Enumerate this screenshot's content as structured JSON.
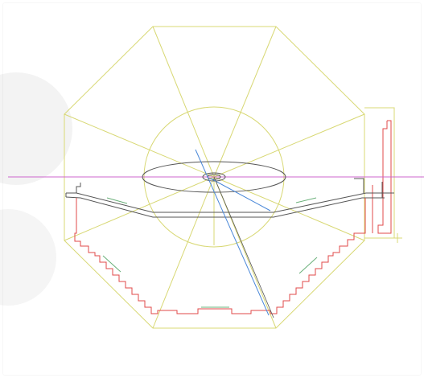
{
  "drawing": {
    "description_colors": {
      "background": "#ffffff",
      "construction": "#d8d874",
      "guide_horizontal": "#cc66cc",
      "plan_outline": "#e04a4a",
      "detail_green": "#6ab07a",
      "section_dark": "#555555",
      "ray_blue": "#4a88d8",
      "ellipse": "#555555"
    },
    "elements": [
      "octagon-construction",
      "circle-construction",
      "radial-guides",
      "horizontal-guide-line",
      "ellipse",
      "section-profile",
      "plan-outline",
      "blue-rays",
      "right-side-elevation"
    ]
  }
}
